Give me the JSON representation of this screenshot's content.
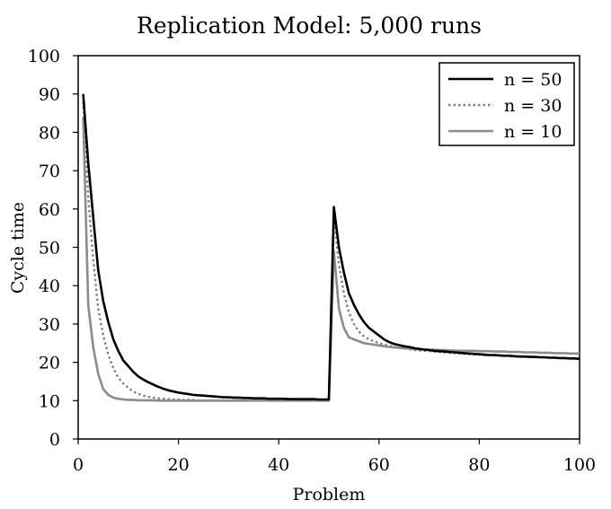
{
  "chart_data": {
    "type": "line",
    "title": "Replication Model: 5,000 runs",
    "xlabel": "Problem",
    "ylabel": "Cycle time",
    "xlim": [
      0,
      100
    ],
    "ylim": [
      0,
      100
    ],
    "xticks": [
      0,
      20,
      40,
      60,
      80,
      100
    ],
    "yticks": [
      0,
      10,
      20,
      30,
      40,
      50,
      60,
      70,
      80,
      90,
      100
    ],
    "grid": false,
    "legend_position": "top-right",
    "x": [
      1,
      2,
      3,
      4,
      5,
      6,
      7,
      8,
      9,
      10,
      11,
      12,
      13,
      14,
      15,
      16,
      17,
      18,
      19,
      20,
      21,
      22,
      23,
      24,
      25,
      26,
      27,
      28,
      29,
      30,
      31,
      32,
      33,
      34,
      35,
      36,
      37,
      38,
      39,
      40,
      41,
      42,
      43,
      44,
      45,
      46,
      47,
      48,
      49,
      50,
      51,
      52,
      53,
      54,
      55,
      56,
      57,
      58,
      59,
      60,
      61,
      62,
      63,
      64,
      65,
      66,
      67,
      68,
      69,
      70,
      71,
      72,
      73,
      74,
      75,
      76,
      77,
      78,
      79,
      80,
      81,
      82,
      83,
      84,
      85,
      86,
      87,
      88,
      89,
      90,
      91,
      92,
      93,
      94,
      95,
      96,
      97,
      98,
      99,
      100
    ],
    "series": [
      {
        "name": "n = 50",
        "color": "#000000",
        "dash": "solid",
        "values": [
          90,
          72,
          58,
          44,
          36,
          30.5,
          26,
          23,
          20.5,
          19,
          17.5,
          16.3,
          15.5,
          14.8,
          14.2,
          13.6,
          13.1,
          12.7,
          12.4,
          12.1,
          11.9,
          11.7,
          11.5,
          11.4,
          11.3,
          11.2,
          11.1,
          11,
          10.9,
          10.9,
          10.8,
          10.8,
          10.7,
          10.7,
          10.6,
          10.6,
          10.6,
          10.5,
          10.5,
          10.5,
          10.5,
          10.4,
          10.4,
          10.4,
          10.4,
          10.4,
          10.4,
          10.3,
          10.3,
          10.3,
          60.5,
          50,
          43.5,
          38,
          35,
          32.5,
          30.5,
          29,
          28,
          27,
          26,
          25.3,
          24.8,
          24.5,
          24.2,
          24,
          23.7,
          23.5,
          23.3,
          23.2,
          23,
          22.9,
          22.8,
          22.7,
          22.6,
          22.5,
          22.4,
          22.3,
          22.2,
          22.1,
          22,
          21.9,
          21.9,
          21.8,
          21.7,
          21.7,
          21.6,
          21.5,
          21.5,
          21.4,
          21.4,
          21.3,
          21.3,
          21.2,
          21.2,
          21.1,
          21.1,
          21,
          21,
          20.9
        ]
      },
      {
        "name": "n = 30",
        "color": "#808080",
        "dash": "dotted",
        "values": [
          88,
          63,
          47,
          34,
          27,
          22,
          18.5,
          16,
          14.5,
          13.3,
          12.4,
          11.8,
          11.3,
          11,
          10.8,
          10.6,
          10.5,
          10.4,
          10.3,
          10.3,
          10.2,
          10.2,
          10.2,
          10.1,
          10.1,
          10.1,
          10.1,
          10.1,
          10.1,
          10.1,
          10.1,
          10.1,
          10,
          10,
          10,
          10,
          10,
          10,
          10,
          10,
          10,
          10,
          10,
          10,
          10,
          10,
          10,
          10,
          10,
          10,
          58,
          45.5,
          38,
          33,
          30,
          28,
          26.8,
          26,
          25.5,
          25,
          24.6,
          24.3,
          24,
          23.8,
          23.6,
          23.4,
          23.2,
          23.1,
          23,
          22.9,
          22.8,
          22.7,
          22.6,
          22.5,
          22.4,
          22.3,
          22.2,
          22.1,
          22,
          22,
          21.9,
          21.9,
          21.8,
          21.8,
          21.7,
          21.7,
          21.6,
          21.6,
          21.5,
          21.5,
          21.4,
          21.4,
          21.3,
          21.3,
          21.2,
          21.2,
          21.2,
          21.1,
          21.1,
          21
        ]
      },
      {
        "name": "n = 10",
        "color": "#8c8c8c",
        "dash": "solid",
        "values": [
          84,
          35,
          24,
          17,
          13,
          11.5,
          10.8,
          10.5,
          10.3,
          10.2,
          10.2,
          10.1,
          10.1,
          10.1,
          10.1,
          10,
          10,
          10,
          10,
          10,
          10,
          10,
          10,
          10,
          10,
          10,
          10,
          10,
          10,
          10,
          10,
          10,
          10,
          10,
          10,
          10,
          10,
          10,
          10,
          10,
          10,
          10,
          10,
          10,
          10,
          10,
          10,
          10,
          10,
          10,
          49,
          34,
          29,
          26.5,
          26,
          25.5,
          25,
          24.8,
          24.6,
          24.4,
          24.2,
          24,
          23.9,
          23.8,
          23.7,
          23.6,
          23.5,
          23.4,
          23.4,
          23.3,
          23.3,
          23.2,
          23.2,
          23.1,
          23.1,
          23,
          23,
          23,
          23,
          22.9,
          22.9,
          22.9,
          22.8,
          22.8,
          22.8,
          22.7,
          22.7,
          22.7,
          22.6,
          22.6,
          22.6,
          22.5,
          22.5,
          22.5,
          22.4,
          22.4,
          22.4,
          22.3,
          22.3,
          22.3
        ]
      }
    ]
  }
}
